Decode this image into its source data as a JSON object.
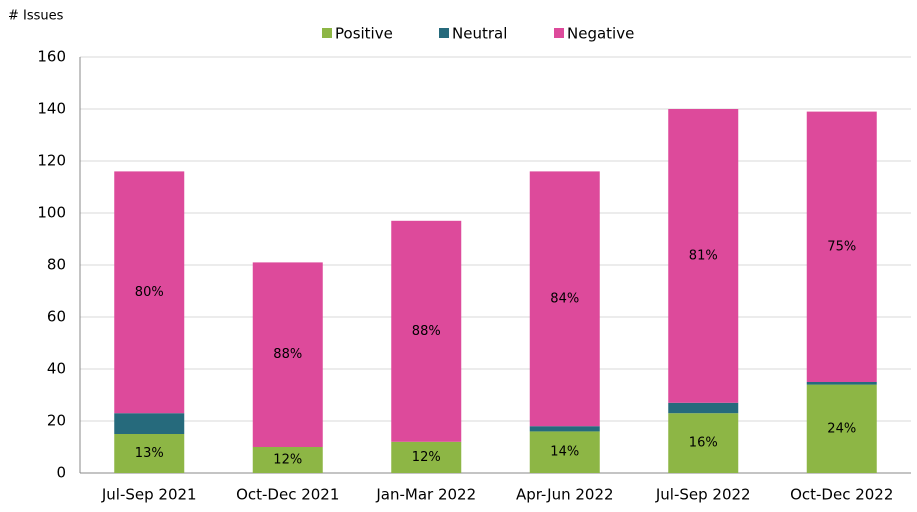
{
  "chart_data": {
    "type": "stacked_bar",
    "y_label": "# Issues",
    "categories": [
      "Jul-Sep 2021",
      "Oct-Dec 2021",
      "Jan-Mar 2022",
      "Apr-Jun 2022",
      "Jul-Sep 2022",
      "Oct-Dec 2022"
    ],
    "series": [
      {
        "name": "Positive",
        "color": "#8db645",
        "values": [
          15,
          10,
          12,
          16,
          23,
          34
        ],
        "share_labels": [
          "13%",
          "12%",
          "12%",
          "14%",
          "16%",
          "24%"
        ]
      },
      {
        "name": "Neutral",
        "color": "#266a7c",
        "values": [
          8,
          0,
          0,
          2,
          4,
          1
        ]
      },
      {
        "name": "Negative",
        "color": "#dd4a9b",
        "values": [
          93,
          71,
          85,
          98,
          113,
          104
        ],
        "share_labels": [
          "80%",
          "88%",
          "88%",
          "84%",
          "81%",
          "75%"
        ]
      }
    ],
    "ylim": [
      0,
      160
    ],
    "yticks": [
      0,
      20,
      40,
      60,
      80,
      100,
      120,
      140,
      160
    ],
    "grid": true,
    "legend": "top"
  }
}
